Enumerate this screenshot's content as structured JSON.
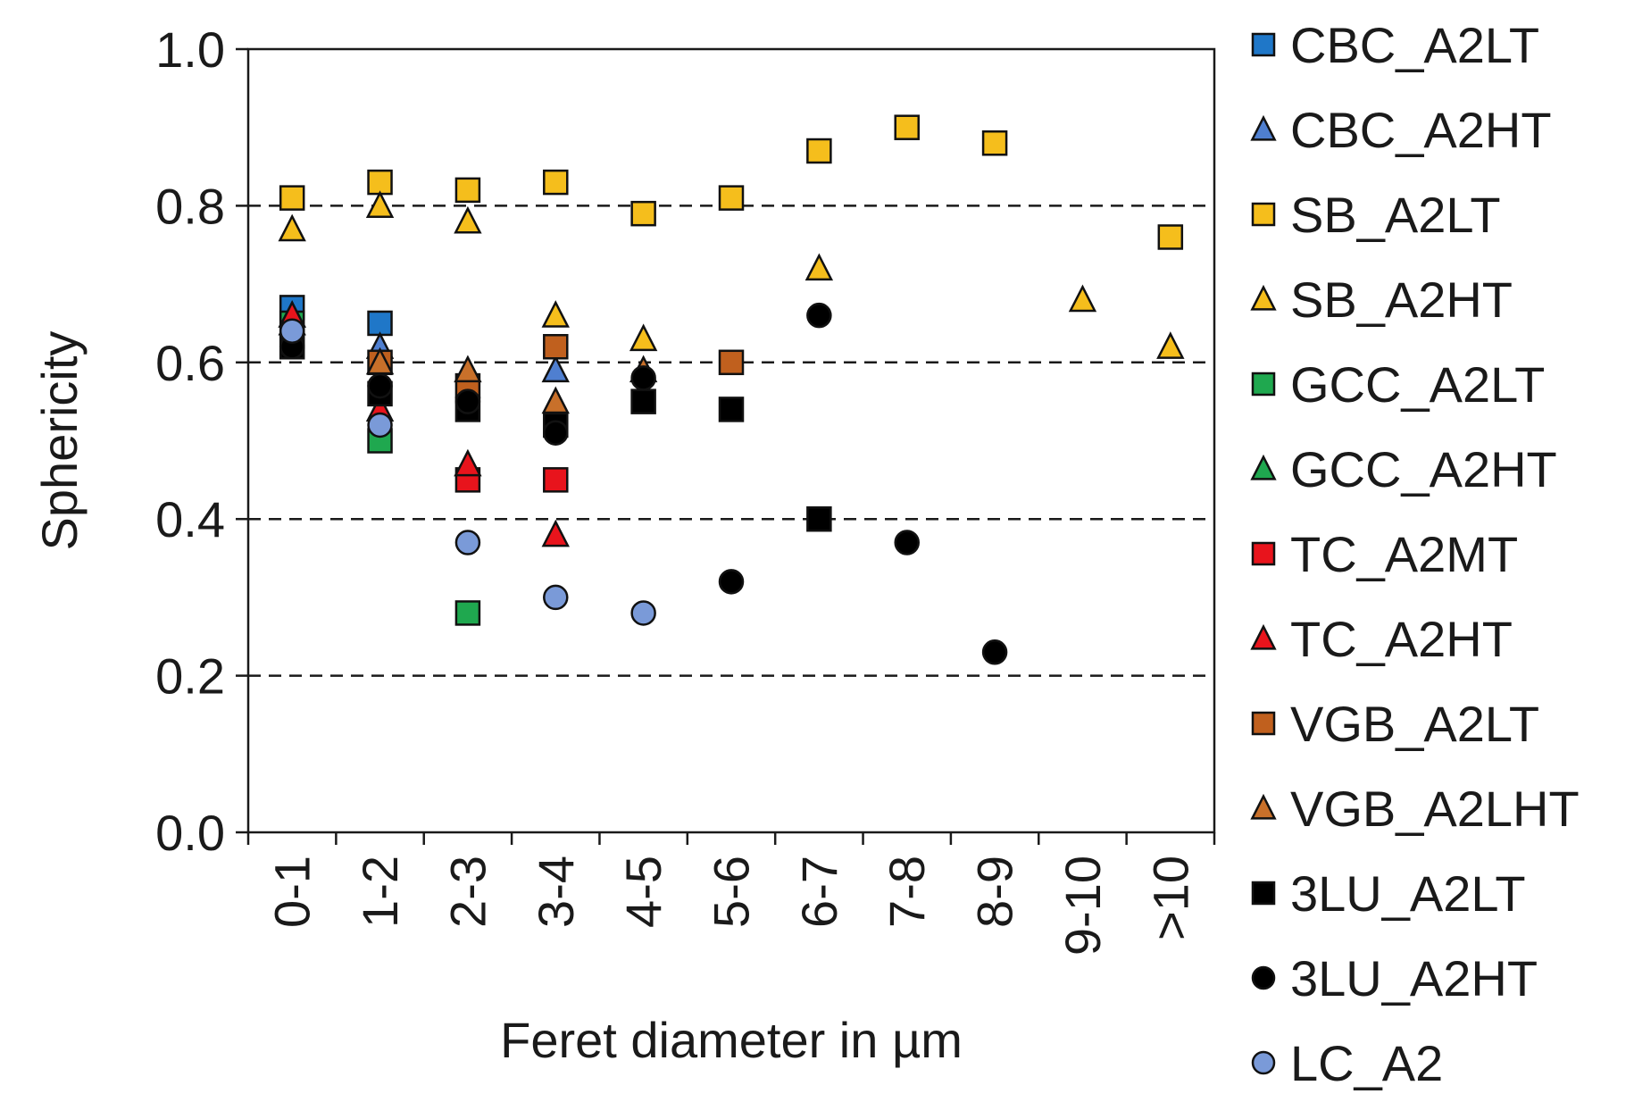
{
  "chart_data": {
    "type": "scatter",
    "title": "",
    "xlabel": "Feret diameter in  µm",
    "ylabel": "Sphericity",
    "categories": [
      "0-1",
      "1-2",
      "2-3",
      "3-4",
      "4-5",
      "5-6",
      "6-7",
      "7-8",
      "8-9",
      "9-10",
      ">10"
    ],
    "ylim": [
      0,
      1.0
    ],
    "yticks": [
      "0.0",
      "0.2",
      "0.4",
      "0.6",
      "0.8",
      "1.0"
    ],
    "gridlines": [
      0.2,
      0.4,
      0.6,
      0.8
    ],
    "grid_style": "dashed horizontal",
    "legend_position": "right",
    "series": [
      {
        "name": "CBC_A2LT",
        "marker": "square",
        "color": "#1f77c8",
        "values": [
          0.67,
          0.65,
          null,
          null,
          null,
          null,
          null,
          null,
          null,
          null,
          null
        ]
      },
      {
        "name": "CBC_A2HT",
        "marker": "triangle",
        "color": "#4f7fd0",
        "values": [
          0.65,
          0.62,
          null,
          0.59,
          null,
          null,
          null,
          null,
          null,
          null,
          null
        ]
      },
      {
        "name": "SB_A2LT",
        "marker": "square",
        "color": "#f5be1c",
        "values": [
          0.81,
          0.83,
          0.82,
          0.83,
          0.79,
          0.81,
          0.87,
          0.9,
          0.88,
          null,
          0.76
        ]
      },
      {
        "name": "SB_A2HT",
        "marker": "triangle",
        "color": "#f5be1c",
        "values": [
          0.77,
          0.8,
          0.78,
          0.66,
          0.63,
          null,
          0.72,
          null,
          null,
          0.68,
          0.62
        ]
      },
      {
        "name": "GCC_A2LT",
        "marker": "square",
        "color": "#1fa84f",
        "values": [
          0.65,
          0.5,
          0.28,
          null,
          null,
          null,
          null,
          null,
          null,
          null,
          null
        ]
      },
      {
        "name": "GCC_A2HT",
        "marker": "triangle",
        "color": "#1fa84f",
        "values": [
          0.66,
          null,
          null,
          null,
          null,
          null,
          null,
          null,
          null,
          null,
          null
        ]
      },
      {
        "name": "TC_A2MT",
        "marker": "square",
        "color": "#e8141c",
        "values": [
          null,
          null,
          0.45,
          0.45,
          null,
          null,
          null,
          null,
          null,
          null,
          null
        ]
      },
      {
        "name": "TC_A2HT",
        "marker": "triangle",
        "color": "#e8141c",
        "values": [
          0.66,
          0.54,
          0.47,
          0.38,
          null,
          null,
          null,
          null,
          null,
          null,
          null
        ]
      },
      {
        "name": "VGB_A2LT",
        "marker": "square",
        "color": "#c0601e",
        "values": [
          null,
          0.6,
          0.57,
          0.62,
          null,
          0.6,
          null,
          null,
          null,
          null,
          null
        ]
      },
      {
        "name": "VGB_A2LHT",
        "marker": "triangle",
        "color": "#c8702a",
        "values": [
          null,
          0.6,
          0.59,
          0.55,
          0.59,
          null,
          null,
          null,
          null,
          null,
          null
        ]
      },
      {
        "name": "3LU_A2LT",
        "marker": "square",
        "color": "#000000",
        "values": [
          0.62,
          0.56,
          0.54,
          0.52,
          0.55,
          0.54,
          0.4,
          null,
          null,
          null,
          null
        ]
      },
      {
        "name": "3LU_A2HT",
        "marker": "circle",
        "color": "#000000",
        "values": [
          0.62,
          0.57,
          0.55,
          0.51,
          0.58,
          0.32,
          0.66,
          0.37,
          0.23,
          null,
          null
        ]
      },
      {
        "name": "LC_A2",
        "marker": "circle",
        "color": "#7a9ad8",
        "values": [
          0.64,
          0.52,
          0.37,
          0.3,
          0.28,
          null,
          null,
          null,
          null,
          null,
          null
        ]
      }
    ]
  }
}
